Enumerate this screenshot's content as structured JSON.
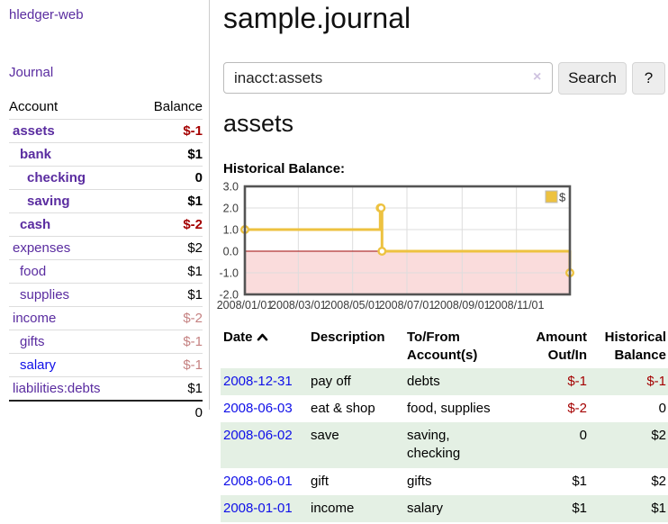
{
  "colors": {
    "purple": "#5a2ca0",
    "link_blue": "#0f0fe8",
    "neg_strong": "#a40000",
    "neg_soft": "#c58282",
    "row_green": "#e4f0e4",
    "gold": "#edc240",
    "chart_pink": "#fadcdc",
    "chart_zero_line": "#b03434",
    "chart_border": "#545454",
    "grid_line": "#dddddd",
    "button_bg": "#ededed"
  },
  "app": {
    "brand": "hledger-web"
  },
  "sidebar": {
    "journal_link": "Journal",
    "headers": {
      "account": "Account",
      "balance": "Balance"
    },
    "accounts": [
      {
        "name": "assets",
        "balance": "$-1",
        "depth": 1
      },
      {
        "name": "bank",
        "balance": "$1",
        "depth": 2
      },
      {
        "name": "checking",
        "balance": "0",
        "depth": 3
      },
      {
        "name": "saving",
        "balance": "$1",
        "depth": 3
      },
      {
        "name": "cash",
        "balance": "$-2",
        "depth": 2
      },
      {
        "name": "expenses",
        "balance": "$2",
        "depth": 1
      },
      {
        "name": "food",
        "balance": "$1",
        "depth": 2
      },
      {
        "name": "supplies",
        "balance": "$1",
        "depth": 2
      },
      {
        "name": "income",
        "balance": "$-2",
        "depth": 1
      },
      {
        "name": "gifts",
        "balance": "$-1",
        "depth": 2
      },
      {
        "name": "salary",
        "balance": "$-1",
        "depth": 2
      },
      {
        "name": "liabilities:debts",
        "balance": "$1",
        "depth": 1
      }
    ],
    "total": "0"
  },
  "main": {
    "title": "sample.journal",
    "search": {
      "value": "inacct:assets",
      "clear_icon": "×",
      "search_label": "Search",
      "help_label": "?"
    },
    "account_heading": "assets",
    "chart_label": "Historical Balance:",
    "register": {
      "headers": {
        "date": "Date",
        "description": "Description",
        "accounts": "To/From Account(s)",
        "amount": "Amount Out/In",
        "balance": "Historical Balance"
      },
      "rows": [
        {
          "date": "2008-12-31",
          "description": "pay off",
          "accounts": "debts",
          "amount": "$-1",
          "balance": "$-1"
        },
        {
          "date": "2008-06-03",
          "description": "eat & shop",
          "accounts": "food, supplies",
          "amount": "$-2",
          "balance": "0"
        },
        {
          "date": "2008-06-02",
          "description": "save",
          "accounts": "saving,\nchecking",
          "amount": "0",
          "balance": "$2"
        },
        {
          "date": "2008-06-01",
          "description": "gift",
          "accounts": "gifts",
          "amount": "$1",
          "balance": "$2"
        },
        {
          "date": "2008-01-01",
          "description": "income",
          "accounts": "salary",
          "amount": "$1",
          "balance": "$1"
        }
      ]
    }
  },
  "chart_data": {
    "type": "line",
    "title": "Historical Balance",
    "step": true,
    "x_range_days": [
      0,
      365
    ],
    "ylim": [
      -2,
      3
    ],
    "y_ticks": [
      3.0,
      2.0,
      1.0,
      0.0,
      -1.0,
      -2.0
    ],
    "y_tick_labels": [
      "3.0",
      "2.0",
      "1.0",
      "0.0",
      "-1.0",
      "-2.0"
    ],
    "x_ticks": [
      {
        "day": 0,
        "label": "2008/01/01"
      },
      {
        "day": 60,
        "label": "2008/03/01"
      },
      {
        "day": 121,
        "label": "2008/05/01"
      },
      {
        "day": 182,
        "label": "2008/07/01"
      },
      {
        "day": 244,
        "label": "2008/09/01"
      },
      {
        "day": 305,
        "label": "2008/11/01"
      }
    ],
    "series": [
      {
        "name": "$",
        "color": "#edc240",
        "points": [
          {
            "date": "2008-01-01",
            "day": 0,
            "value": 1
          },
          {
            "date": "2008-06-01",
            "day": 152,
            "value": 2
          },
          {
            "date": "2008-06-02",
            "day": 153,
            "value": 2
          },
          {
            "date": "2008-06-03",
            "day": 154,
            "value": 0
          },
          {
            "date": "2008-12-31",
            "day": 365,
            "value": -1
          }
        ]
      }
    ],
    "grid": true,
    "negative_region_shaded": true,
    "legend": {
      "position": "top-right",
      "label": "$"
    }
  }
}
